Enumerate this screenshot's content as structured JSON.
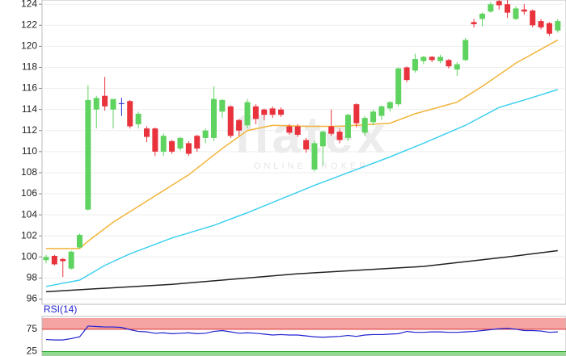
{
  "chart_data": {
    "type": "candlestick",
    "watermark": {
      "logo": "flatex",
      "tagline": "ONLINE BROKER"
    },
    "ylim": [
      95.5,
      124.4
    ],
    "yticks": [
      96,
      98,
      100,
      102,
      104,
      106,
      108,
      110,
      112,
      114,
      116,
      118,
      120,
      122,
      124
    ],
    "grid": true,
    "up_color": "#5fd35f",
    "down_color": "#e8323c",
    "flat_color": "#2222cc",
    "open": [
      99.7,
      100.1,
      99.8,
      98.9,
      100.9,
      104.5,
      114.0,
      115.3,
      114.0,
      114.6,
      114.8,
      112.6,
      112.2,
      112.2,
      110.0,
      111.0,
      110.3,
      110.8,
      111.5,
      111.3,
      111.3,
      113.8,
      114.3,
      113.0,
      112.5,
      114.3,
      114.0,
      114.1,
      114.0,
      112.4,
      112.4,
      111.1,
      108.3,
      110.5,
      112.4,
      111.9,
      111.3,
      114.5,
      111.8,
      112.8,
      113.4,
      114.1,
      114.5,
      118.0,
      117.7,
      118.6,
      119.0,
      118.6,
      118.7,
      117.8,
      118.7,
      122.3,
      122.6,
      123.3,
      124.3,
      124.0,
      122.6,
      123.5,
      123.4,
      122.4,
      122.2,
      121.5
    ],
    "high": [
      100.2,
      100.2,
      99.9,
      100.6,
      102.2,
      116.3,
      115.3,
      117.1,
      115.0,
      115.1,
      114.9,
      113.8,
      112.4,
      112.3,
      111.7,
      111.1,
      111.4,
      111.0,
      111.6,
      112.2,
      116.2,
      115.0,
      114.4,
      113.1,
      115.0,
      114.5,
      114.1,
      114.3,
      114.2,
      112.6,
      112.6,
      111.3,
      111.0,
      112.0,
      114.0,
      112.2,
      113.6,
      114.6,
      113.4,
      114.0,
      114.4,
      114.8,
      118.0,
      118.1,
      119.3,
      119.1,
      119.1,
      119.2,
      118.8,
      118.5,
      120.8,
      122.6,
      123.2,
      124.2,
      124.4,
      124.4,
      123.8,
      124.0,
      123.5,
      122.6,
      122.3,
      122.6
    ],
    "low": [
      99.4,
      99.2,
      98.1,
      98.8,
      100.8,
      104.4,
      112.2,
      113.9,
      112.2,
      113.4,
      112.2,
      112.2,
      110.9,
      109.6,
      109.6,
      109.8,
      110.1,
      109.6,
      110.0,
      110.8,
      111.0,
      113.2,
      111.3,
      111.5,
      112.2,
      112.6,
      113.0,
      113.2,
      113.3,
      111.6,
      111.4,
      109.9,
      108.1,
      108.7,
      111.5,
      110.8,
      111.0,
      112.3,
      111.5,
      112.5,
      113.0,
      113.8,
      114.3,
      116.6,
      117.5,
      118.3,
      118.5,
      118.4,
      117.9,
      117.2,
      118.6,
      121.8,
      121.9,
      123.2,
      123.5,
      122.7,
      122.5,
      123.0,
      121.8,
      121.6,
      121.0,
      121.3
    ],
    "close": [
      100.0,
      99.3,
      99.6,
      100.5,
      102.1,
      114.9,
      115.1,
      114.3,
      115.0,
      114.6,
      112.4,
      113.6,
      111.4,
      110.0,
      111.5,
      110.0,
      111.3,
      109.8,
      110.3,
      112.0,
      115.0,
      114.9,
      111.5,
      112.0,
      114.7,
      113.1,
      113.5,
      113.5,
      113.5,
      111.8,
      111.6,
      110.2,
      110.8,
      111.9,
      111.7,
      111.1,
      113.5,
      112.7,
      113.2,
      113.8,
      114.3,
      114.7,
      117.9,
      116.8,
      118.8,
      119.0,
      118.7,
      119.0,
      118.1,
      118.3,
      120.6,
      122.1,
      123.1,
      124.0,
      123.9,
      123.2,
      123.6,
      123.3,
      122.0,
      121.8,
      121.2,
      122.4
    ],
    "overlays": [
      {
        "color": "#f2b43a",
        "x": [
          0,
          4,
          5,
          8,
          12,
          17,
          21,
          24,
          27,
          31,
          35,
          41,
          44,
          49,
          52,
          56,
          61
        ],
        "values": [
          100.8,
          100.8,
          101.5,
          103.3,
          105.3,
          107.8,
          110.3,
          112.0,
          112.5,
          112.4,
          112.4,
          112.7,
          113.6,
          114.7,
          116.2,
          118.4,
          120.6
        ]
      },
      {
        "color": "#3fd0f0",
        "x": [
          0,
          4,
          7,
          10,
          15,
          20,
          24,
          28,
          32,
          36,
          41,
          45,
          50,
          54,
          57,
          61
        ],
        "values": [
          97.2,
          97.8,
          99.2,
          100.3,
          101.8,
          103.0,
          104.2,
          105.5,
          106.8,
          108.0,
          109.5,
          110.8,
          112.5,
          114.2,
          114.9,
          115.9
        ]
      },
      {
        "color": "#222222",
        "x": [
          0,
          15,
          30,
          45,
          55,
          61
        ],
        "values": [
          96.7,
          97.4,
          98.4,
          99.1,
          100.0,
          100.6
        ]
      }
    ],
    "rsi": {
      "label": "RSI(14)",
      "ylim": [
        15,
        100
      ],
      "yticks": [
        75,
        25
      ],
      "color": "#2020d0",
      "upper_zone_color": "#f6a3a3",
      "lower_zone_color": "#8fdc8f",
      "values": [
        52,
        51,
        51,
        54,
        58,
        82,
        81,
        80,
        80,
        79,
        74,
        70,
        69,
        66,
        67,
        65,
        66,
        67,
        65,
        66,
        70,
        72,
        69,
        66,
        67,
        66,
        64,
        62,
        63,
        62,
        62,
        60,
        58,
        57,
        58,
        59,
        61,
        59,
        62,
        63,
        63,
        64,
        65,
        70,
        68,
        68,
        69,
        69,
        68,
        68,
        69,
        70,
        72,
        74,
        76,
        77,
        75,
        72,
        72,
        71,
        68,
        69
      ]
    }
  }
}
